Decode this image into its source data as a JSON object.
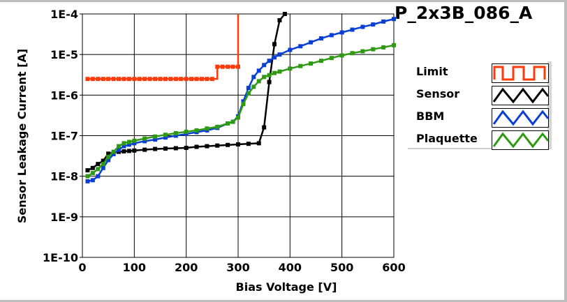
{
  "chart_data": {
    "type": "line",
    "title": "P_2x3B_086_A",
    "xlabel": "Bias Voltage [V]",
    "ylabel": "Sensor Leakage Current [A]",
    "xlim": [
      0,
      600
    ],
    "ylim": [
      1e-10,
      0.0001
    ],
    "yscale": "log",
    "grid": true,
    "legend_placement": "right",
    "x_ticks": [
      "0",
      "100",
      "200",
      "300",
      "400",
      "500",
      "600"
    ],
    "y_ticks": [
      "1E-4",
      "1E-5",
      "1E-6",
      "1E-7",
      "1E-8",
      "1E-9",
      "1E-10"
    ],
    "series": [
      {
        "name": "Limit",
        "color": "#ff3a0a",
        "step": true,
        "x": [
          10,
          20,
          30,
          40,
          50,
          60,
          70,
          80,
          90,
          100,
          110,
          120,
          130,
          140,
          150,
          160,
          170,
          180,
          190,
          200,
          210,
          220,
          230,
          240,
          250,
          260,
          270,
          280,
          290,
          300,
          300
        ],
        "y": [
          2.5e-06,
          2.5e-06,
          2.5e-06,
          2.5e-06,
          2.5e-06,
          2.5e-06,
          2.5e-06,
          2.5e-06,
          2.5e-06,
          2.5e-06,
          2.5e-06,
          2.5e-06,
          2.5e-06,
          2.5e-06,
          2.5e-06,
          2.5e-06,
          2.5e-06,
          2.5e-06,
          2.5e-06,
          2.5e-06,
          2.5e-06,
          2.5e-06,
          2.5e-06,
          2.5e-06,
          2.5e-06,
          5e-06,
          5e-06,
          5e-06,
          5e-06,
          5e-06,
          0.0001
        ]
      },
      {
        "name": "Sensor",
        "color": "#000000",
        "x": [
          10,
          20,
          30,
          40,
          50,
          60,
          70,
          80,
          90,
          100,
          120,
          140,
          160,
          180,
          200,
          220,
          240,
          260,
          280,
          300,
          320,
          340,
          350,
          360,
          370,
          380,
          390
        ],
        "y": [
          1.4e-08,
          1.6e-08,
          2e-08,
          2.4e-08,
          3.6e-08,
          3.8e-08,
          4e-08,
          4.1e-08,
          4.2e-08,
          4.3e-08,
          4.5e-08,
          4.7e-08,
          4.8e-08,
          4.9e-08,
          5e-08,
          5.3e-08,
          5.5e-08,
          5.7e-08,
          5.9e-08,
          6.1e-08,
          6.3e-08,
          6.5e-08,
          1.6e-07,
          2.1e-06,
          1.8e-05,
          7e-05,
          0.0001
        ]
      },
      {
        "name": "BBM",
        "color": "#0a3fd6",
        "x": [
          10,
          20,
          30,
          40,
          50,
          60,
          70,
          80,
          90,
          100,
          120,
          140,
          160,
          180,
          200,
          220,
          240,
          260,
          280,
          290,
          300,
          310,
          320,
          330,
          340,
          350,
          360,
          370,
          380,
          400,
          420,
          440,
          460,
          480,
          500,
          520,
          540,
          560,
          580,
          600
        ],
        "y": [
          7.5e-09,
          8e-09,
          1e-08,
          1.6e-08,
          2.5e-08,
          3.5e-08,
          4.5e-08,
          5.5e-08,
          6e-08,
          6.5e-08,
          7.3e-08,
          8e-08,
          9e-08,
          1e-07,
          1.1e-07,
          1.22e-07,
          1.35e-07,
          1.55e-07,
          2e-07,
          2.2e-07,
          3e-07,
          7e-07,
          1.5e-06,
          2.8e-06,
          4e-06,
          5.5e-06,
          7e-06,
          8.5e-06,
          1e-05,
          1.3e-05,
          1.6e-05,
          2e-05,
          2.5e-05,
          3e-05,
          3.5e-05,
          4.1e-05,
          4.8e-05,
          5.5e-05,
          6.5e-05,
          7.5e-05
        ]
      },
      {
        "name": "Plaquette",
        "color": "#2e9a14",
        "x": [
          10,
          20,
          30,
          40,
          50,
          60,
          70,
          80,
          90,
          100,
          120,
          140,
          160,
          180,
          200,
          220,
          240,
          260,
          280,
          290,
          300,
          310,
          320,
          330,
          340,
          350,
          360,
          370,
          380,
          400,
          420,
          440,
          460,
          480,
          500,
          520,
          540,
          560,
          580,
          600
        ],
        "y": [
          1e-08,
          1.2e-08,
          1.5e-08,
          2e-08,
          3e-08,
          4e-08,
          5.5e-08,
          6.5e-08,
          7e-08,
          7.5e-08,
          8.5e-08,
          9.5e-08,
          1.05e-07,
          1.15e-07,
          1.25e-07,
          1.35e-07,
          1.5e-07,
          1.65e-07,
          2e-07,
          2.2e-07,
          2.8e-07,
          6e-07,
          1.1e-06,
          1.6e-06,
          2.2e-06,
          2.8e-06,
          3.1e-06,
          3.5e-06,
          3.8e-06,
          4.5e-06,
          5.2e-06,
          6e-06,
          7e-06,
          8.2e-06,
          9.5e-06,
          1.08e-05,
          1.2e-05,
          1.35e-05,
          1.5e-05,
          1.7e-05
        ]
      }
    ]
  }
}
